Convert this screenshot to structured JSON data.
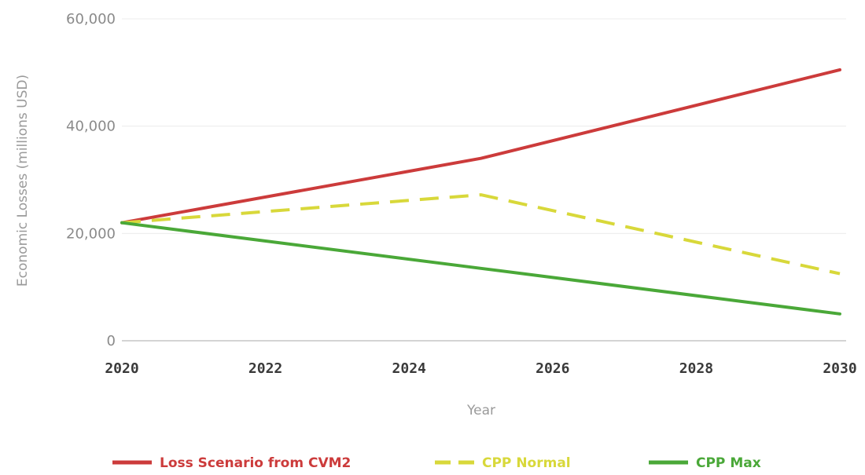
{
  "chart_data": {
    "type": "line",
    "title": "",
    "xlabel": "Year",
    "ylabel": "Economic Losses (millions USD)",
    "x_ticks": [
      "2020",
      "2022",
      "2024",
      "2026",
      "2028",
      "2030"
    ],
    "y_ticks": [
      "0",
      "20,000",
      "40,000",
      "60,000"
    ],
    "xlim": [
      2020,
      2030
    ],
    "ylim": [
      0,
      60000
    ],
    "grid": true,
    "legend_position": "bottom",
    "series": [
      {
        "name": "Loss Scenario from CVM2",
        "color": "#cc3b3b",
        "style": "solid",
        "x": [
          2020,
          2025,
          2030
        ],
        "y": [
          22000,
          34000,
          50500
        ]
      },
      {
        "name": "CPP Normal",
        "color": "#d8d83a",
        "style": "dashed",
        "x": [
          2020,
          2025,
          2030
        ],
        "y": [
          22000,
          27200,
          12500
        ]
      },
      {
        "name": "CPP Max",
        "color": "#4aa838",
        "style": "solid",
        "x": [
          2020,
          2025,
          2030
        ],
        "y": [
          22000,
          13500,
          5000
        ]
      }
    ]
  }
}
